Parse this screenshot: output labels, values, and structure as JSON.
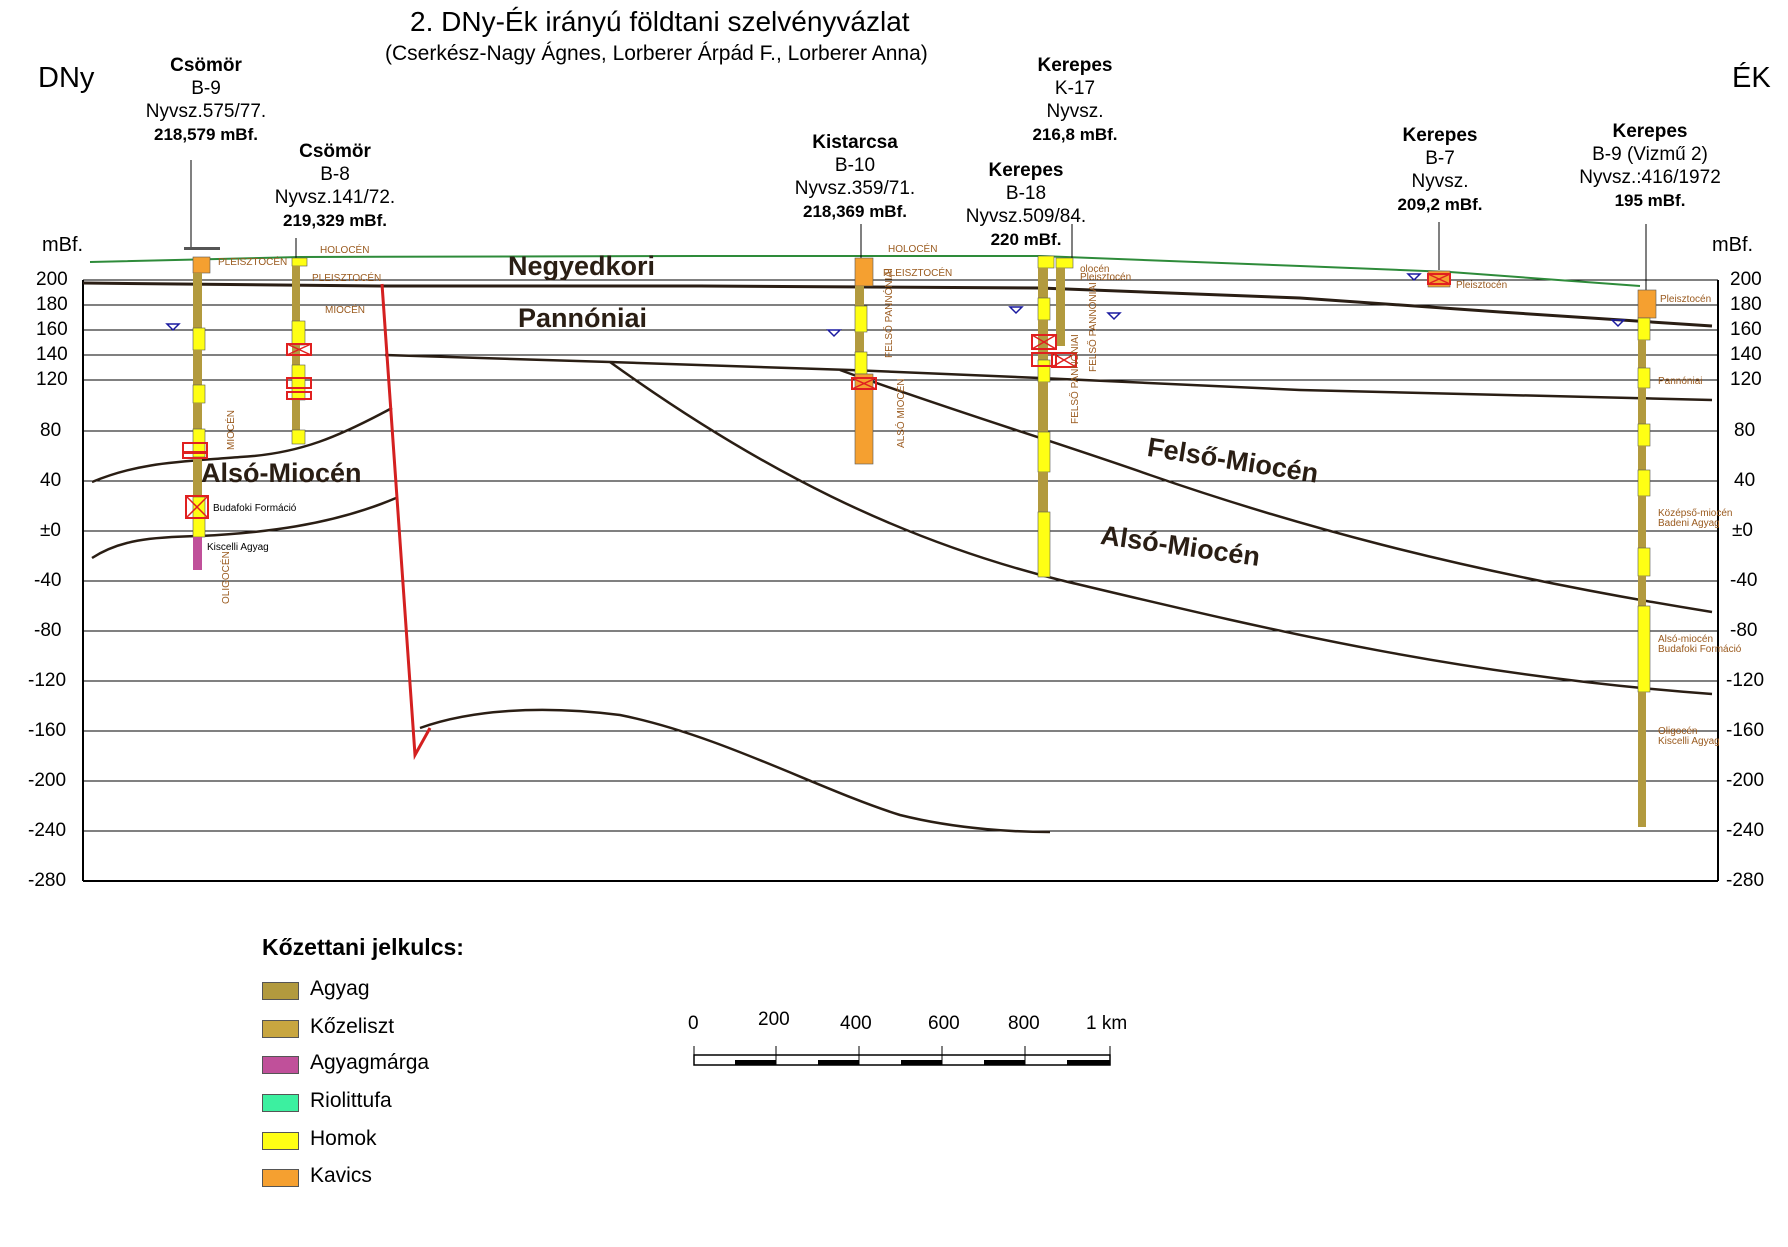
{
  "title": "2. DNy-Ék irányú földtani szelvényvázlat",
  "subtitle": "(Cserkész-Nagy Ágnes, Lorberer Árpád F., Lorberer Anna)",
  "direction": {
    "left": "DNy",
    "right": "ÉK"
  },
  "axis": {
    "unit_left": "mBf.",
    "unit_right": "mBf.",
    "ticks": [
      "200",
      "180",
      "160",
      "140",
      "120",
      "80",
      "40",
      "±0",
      "-40",
      "-80",
      "-120",
      "-160",
      "-200",
      "-240",
      "-280"
    ]
  },
  "wells": [
    {
      "name": "Csömör",
      "code": "B-9",
      "reg": "Nyvsz.575/77.",
      "elev": "218,579 mBf."
    },
    {
      "name": "Csömör",
      "code": "B-8",
      "reg": "Nyvsz.141/72.",
      "elev": "219,329 mBf."
    },
    {
      "name": "Kistarcsa",
      "code": "B-10",
      "reg": "Nyvsz.359/71.",
      "elev": "218,369 mBf."
    },
    {
      "name": "Kerepes",
      "code": "K-17",
      "reg": "Nyvsz.",
      "elev": "216,8 mBf."
    },
    {
      "name": "Kerepes",
      "code": "B-18",
      "reg": "Nyvsz.509/84.",
      "elev": "220 mBf."
    },
    {
      "name": "Kerepes",
      "code": "B-7",
      "reg": "Nyvsz.",
      "elev": "209,2 mBf."
    },
    {
      "name": "Kerepes",
      "code": "B-9 (Vizmű 2)",
      "reg": "Nyvsz.:416/1972",
      "elev": "195 mBf."
    }
  ],
  "units": {
    "negyedkori": "Negyedkori",
    "pannoniai": "Pannóniai",
    "also_miocen_w": "Alsó-Miocén",
    "felso_miocen": "Felső-Miocén",
    "also_miocen_e": "Alsó-Miocén"
  },
  "small_labels": {
    "holocen1": "HOLOCÉN",
    "pleisztocen1": "PLEISZTOCÉN",
    "holocen2": "HOLOCÉN",
    "pleisztocen2": "PLEISZTOCÉN",
    "miocen1": "MIOCÉN",
    "miocen2": "MIOCÉN",
    "budafoki": "Budafoki Formáció",
    "kiscelli": "Kiscelli Agyag",
    "oligocen1": "OLIGOCÉN",
    "holocen3": "HOLOCÉN",
    "pleisztocen3": "PLEISZTOCÉN",
    "felso_pannoniai1": "FELSŐ PANNÓNIAI",
    "also_miocen_v": "ALSÓ MIOCÉN",
    "pleisztocen4": "Pleisztocén",
    "holocen4": "olocén",
    "felso_pannoniai2": "FELSŐ PANNÓNIAI",
    "felso_pannoniai3": "FELSŐ PANNÓNIAI",
    "pleisztocen5": "Pleisztocén",
    "pleisztocen6": "Pleisztocén",
    "pannoniai_s": "Pannóniai",
    "kozepso_miocen": "Középső-miocén",
    "badeni": "Badeni Agyag",
    "also_miocen_s": "Alsó-miocén",
    "budafoki2": "Budafoki Formáció",
    "oligocen2": "Oligocén",
    "kiscelli2": "Kiscelli Agyag"
  },
  "legend": {
    "title": "Kőzettani jelkulcs:",
    "items": [
      {
        "label": "Agyag",
        "color": "#b29a3e"
      },
      {
        "label": "Kőzeliszt",
        "color": "#c8a640"
      },
      {
        "label": "Agyagmárga",
        "color": "#c0509a"
      },
      {
        "label": "Riolittufa",
        "color": "#3cf0a0"
      },
      {
        "label": "Homok",
        "color": "#ffff14"
      },
      {
        "label": "Kavics",
        "color": "#f5a030"
      }
    ]
  },
  "scale": {
    "labels": [
      "0",
      "200",
      "400",
      "600",
      "800",
      "1 km"
    ]
  },
  "colors": {
    "surface": "#2e8b3a",
    "fault": "#d42020",
    "boundary": "#2a1e14",
    "clay": "#b29a3e",
    "sand": "#ffff14",
    "gravel": "#f5a030",
    "marl": "#c0509a",
    "filter": "#e02020",
    "water": "#1a1aa0"
  }
}
